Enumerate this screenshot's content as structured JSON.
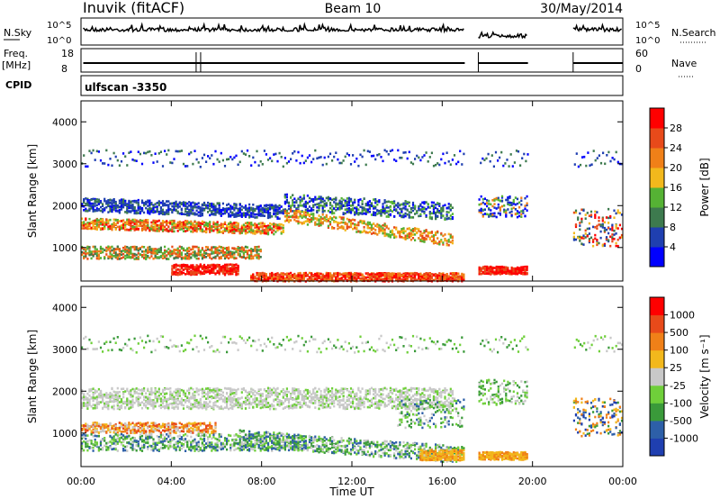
{
  "header": {
    "station": "Inuvik (fitACF)",
    "beam": "Beam 10",
    "date": "30/May/2014"
  },
  "strips": {
    "nsky_label": "N.Sky",
    "nsearch_label": "N.Search",
    "freq_label": "Freq.",
    "freq_unit": "[MHz]",
    "nave_label": "Nave",
    "cpid_label": "CPID",
    "cpid_value": "ulfscan -3350",
    "noise_ticks_left": [
      "10^5",
      "10^0"
    ],
    "noise_ticks_right": [
      "10^5",
      "10^0"
    ],
    "freq_ticks": [
      "18",
      "8"
    ],
    "nave_ticks": [
      "60",
      "0"
    ]
  },
  "colors": {
    "power": [
      "#0000ff",
      "#1f3fb0",
      "#3d7a4e",
      "#55b234",
      "#f2b81c",
      "#f08018",
      "#e84a1a",
      "#ff0000"
    ],
    "velocity": [
      "#1f3fb0",
      "#2d5fa8",
      "#3a9a3a",
      "#6fcf3a",
      "#c8c8c8",
      "#f2b81c",
      "#f08018",
      "#e84a1a",
      "#ff0000"
    ]
  },
  "chart_data": [
    {
      "type": "heatmap",
      "title": "",
      "xlabel": "",
      "ylabel": "Slant Range [km]",
      "xlim": [
        "00:00",
        "24:00"
      ],
      "ylim": [
        200,
        4500
      ],
      "y_ticks": [
        "4000",
        "3000",
        "2000",
        "1000"
      ],
      "colorbar_label": "Power [dB]",
      "colorbar_ticks": [
        "28",
        "24",
        "20",
        "16",
        "12",
        "8",
        "4"
      ],
      "colorbar_range": [
        0,
        30
      ]
    },
    {
      "type": "heatmap",
      "title": "",
      "xlabel": "Time UT",
      "ylabel": "Slant Range [km]",
      "xlim": [
        "00:00",
        "24:00"
      ],
      "ylim": [
        200,
        4500
      ],
      "x_ticks": [
        "00:00",
        "04:00",
        "08:00",
        "12:00",
        "16:00",
        "20:00",
        "00:00"
      ],
      "y_ticks": [
        "4000",
        "3000",
        "2000",
        "1000"
      ],
      "colorbar_label": "Velocity [m s⁻¹]",
      "colorbar_ticks": [
        "1000",
        "500",
        "100",
        "25",
        "-25",
        "-100",
        "-500",
        "-1000"
      ]
    }
  ]
}
